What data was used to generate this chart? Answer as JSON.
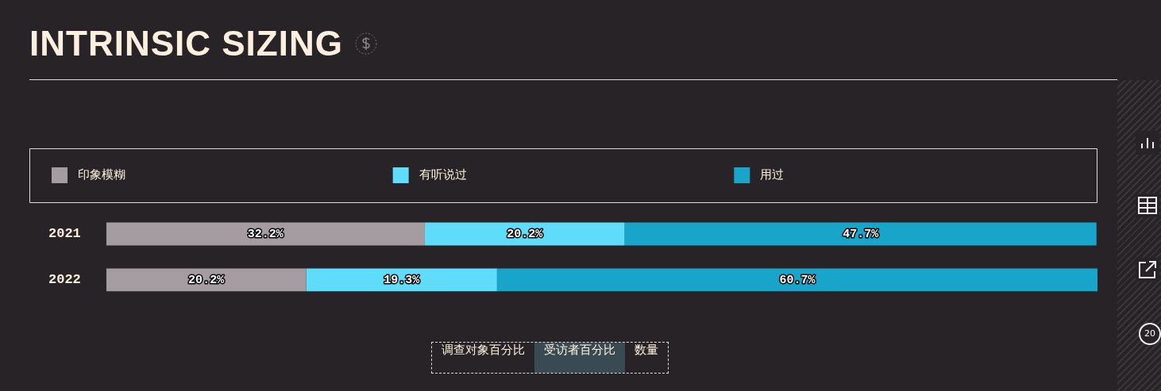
{
  "chart_data": {
    "type": "bar",
    "title": "INTRINSIC SIZING",
    "orientation": "horizontal",
    "stacked": true,
    "categories": [
      "2021",
      "2022"
    ],
    "legend": "top",
    "tick_labels": "y",
    "series": [
      {
        "name": "印象模糊",
        "color": "#a59ca1",
        "values": [
          32.2,
          20.2
        ],
        "value_labels": [
          "32.2%",
          "20.2%"
        ]
      },
      {
        "name": "有听说过",
        "color": "#5fdcfa",
        "values": [
          20.2,
          19.3
        ],
        "value_labels": [
          "20.2%",
          "19.3%"
        ]
      },
      {
        "name": "用过",
        "color": "#19a4c9",
        "values": [
          47.7,
          60.7
        ],
        "value_labels": [
          "47.7%",
          "60.7%"
        ]
      }
    ],
    "annotations": [
      "调查对象百分比",
      "受访者百分比",
      "数量",
      "20"
    ]
  }
}
